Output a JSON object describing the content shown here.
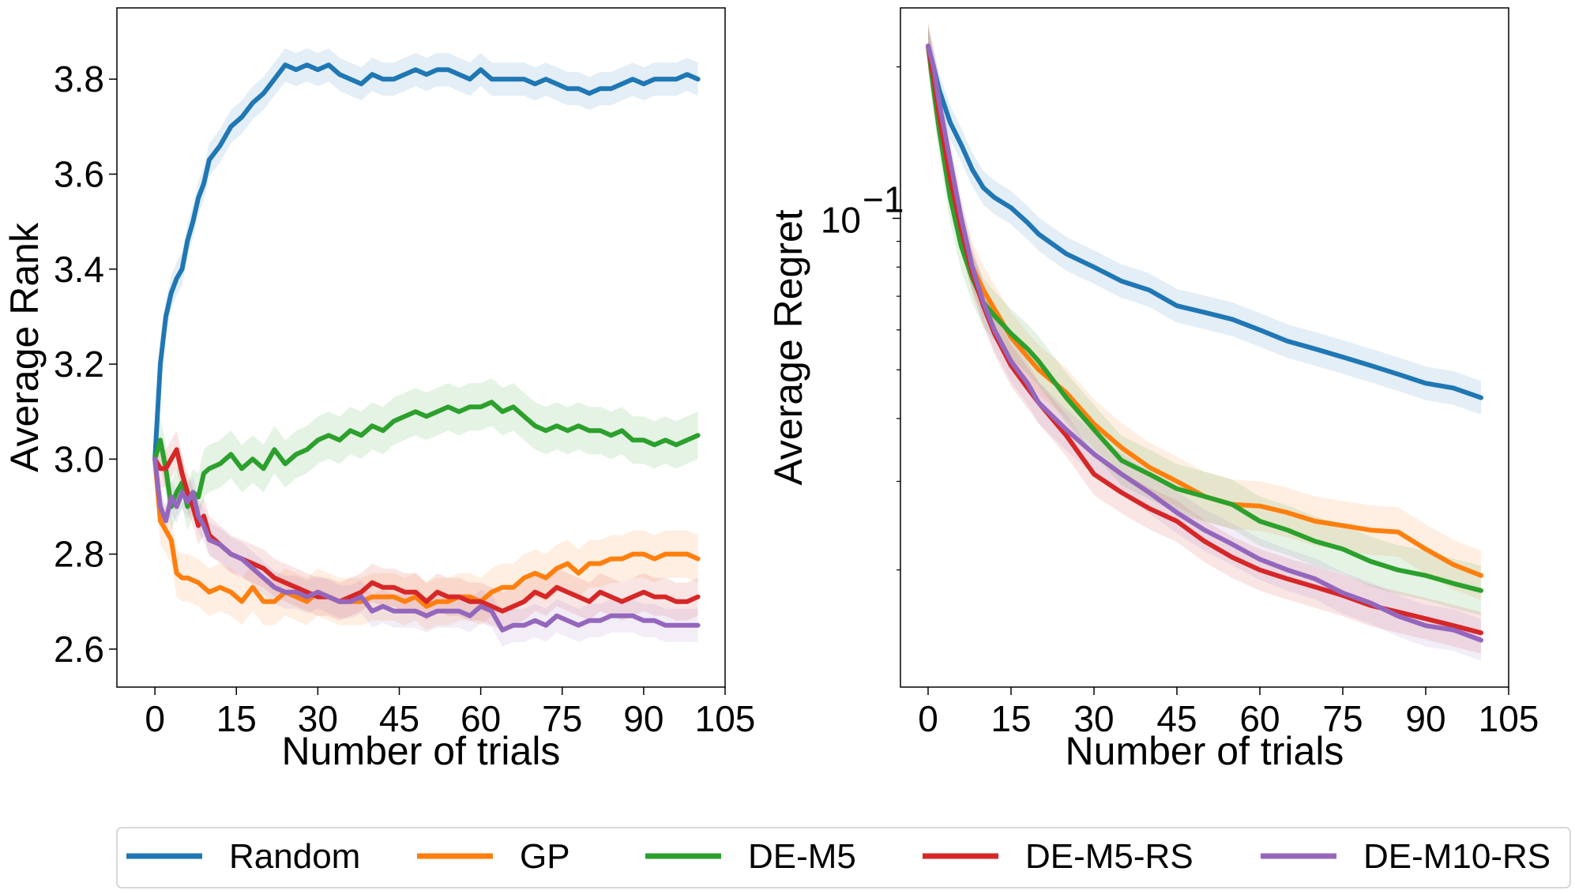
{
  "chart_data": [
    {
      "type": "line",
      "panel": "left",
      "xlabel": "Number of trials",
      "ylabel": "Average Rank",
      "xlim": [
        -7,
        105
      ],
      "ylim": [
        2.52,
        3.95
      ],
      "xticks": [
        0,
        15,
        30,
        45,
        60,
        75,
        90,
        105
      ],
      "yticks": [
        2.6,
        2.8,
        3.0,
        3.2,
        3.4,
        3.6,
        3.8
      ],
      "ytick_labels": [
        "2.6",
        "2.8",
        "3.0",
        "3.2",
        "3.4",
        "3.6",
        "3.8"
      ],
      "series": [
        {
          "name": "Random",
          "color": "#1f77b4",
          "x": [
            0,
            1,
            2,
            3,
            4,
            5,
            6,
            7,
            8,
            9,
            10,
            12,
            14,
            16,
            18,
            20,
            22,
            24,
            26,
            28,
            30,
            32,
            34,
            36,
            38,
            40,
            42,
            44,
            46,
            48,
            50,
            52,
            54,
            56,
            58,
            60,
            62,
            64,
            66,
            68,
            70,
            72,
            74,
            76,
            78,
            80,
            82,
            84,
            86,
            88,
            90,
            92,
            94,
            96,
            98,
            100
          ],
          "y": [
            3.0,
            3.2,
            3.3,
            3.35,
            3.38,
            3.4,
            3.46,
            3.5,
            3.55,
            3.58,
            3.63,
            3.66,
            3.7,
            3.72,
            3.75,
            3.77,
            3.8,
            3.83,
            3.82,
            3.83,
            3.82,
            3.83,
            3.81,
            3.8,
            3.79,
            3.81,
            3.8,
            3.8,
            3.81,
            3.82,
            3.81,
            3.82,
            3.82,
            3.81,
            3.8,
            3.82,
            3.8,
            3.8,
            3.8,
            3.8,
            3.79,
            3.8,
            3.79,
            3.78,
            3.78,
            3.77,
            3.78,
            3.78,
            3.79,
            3.8,
            3.79,
            3.8,
            3.8,
            3.8,
            3.81,
            3.8
          ],
          "band": 0.035
        },
        {
          "name": "GP",
          "color": "#ff7f0e",
          "x": [
            0,
            1,
            2,
            3,
            4,
            5,
            6,
            8,
            10,
            12,
            14,
            16,
            18,
            20,
            22,
            24,
            26,
            28,
            30,
            32,
            34,
            36,
            38,
            40,
            42,
            44,
            46,
            48,
            50,
            52,
            54,
            56,
            58,
            60,
            62,
            64,
            66,
            68,
            70,
            72,
            74,
            76,
            78,
            80,
            82,
            84,
            86,
            88,
            90,
            92,
            94,
            96,
            98,
            100
          ],
          "y": [
            3.0,
            2.87,
            2.85,
            2.83,
            2.76,
            2.75,
            2.75,
            2.74,
            2.72,
            2.73,
            2.72,
            2.7,
            2.73,
            2.7,
            2.7,
            2.72,
            2.71,
            2.7,
            2.72,
            2.71,
            2.7,
            2.7,
            2.7,
            2.71,
            2.71,
            2.71,
            2.7,
            2.71,
            2.69,
            2.7,
            2.7,
            2.71,
            2.71,
            2.7,
            2.72,
            2.73,
            2.73,
            2.75,
            2.76,
            2.75,
            2.77,
            2.78,
            2.76,
            2.78,
            2.78,
            2.79,
            2.79,
            2.8,
            2.8,
            2.79,
            2.8,
            2.8,
            2.8,
            2.79
          ],
          "band": 0.05
        },
        {
          "name": "DE-M5",
          "color": "#2ca02c",
          "x": [
            0,
            1,
            2,
            3,
            4,
            5,
            6,
            7,
            8,
            9,
            10,
            12,
            14,
            16,
            18,
            20,
            22,
            24,
            26,
            28,
            30,
            32,
            34,
            36,
            38,
            40,
            42,
            44,
            46,
            48,
            50,
            52,
            54,
            56,
            58,
            60,
            62,
            64,
            66,
            68,
            70,
            72,
            74,
            76,
            78,
            80,
            82,
            84,
            86,
            88,
            90,
            92,
            94,
            96,
            98,
            100
          ],
          "y": [
            3.0,
            3.04,
            2.98,
            2.9,
            2.93,
            2.95,
            2.9,
            2.93,
            2.92,
            2.97,
            2.98,
            2.99,
            3.01,
            2.98,
            3.0,
            2.98,
            3.02,
            2.99,
            3.01,
            3.02,
            3.04,
            3.05,
            3.04,
            3.06,
            3.05,
            3.07,
            3.06,
            3.08,
            3.09,
            3.1,
            3.09,
            3.1,
            3.11,
            3.1,
            3.11,
            3.11,
            3.12,
            3.1,
            3.11,
            3.09,
            3.07,
            3.06,
            3.07,
            3.06,
            3.07,
            3.06,
            3.06,
            3.05,
            3.06,
            3.04,
            3.04,
            3.03,
            3.04,
            3.03,
            3.04,
            3.05
          ],
          "band": 0.05
        },
        {
          "name": "DE-M5-RS",
          "color": "#d62728",
          "x": [
            0,
            1,
            2,
            3,
            4,
            5,
            6,
            7,
            8,
            9,
            10,
            12,
            14,
            16,
            18,
            20,
            22,
            24,
            26,
            28,
            30,
            32,
            34,
            36,
            38,
            40,
            42,
            44,
            46,
            48,
            50,
            52,
            54,
            56,
            58,
            60,
            62,
            64,
            66,
            68,
            70,
            72,
            74,
            76,
            78,
            80,
            82,
            84,
            86,
            88,
            90,
            92,
            94,
            96,
            98,
            100
          ],
          "y": [
            3.0,
            2.98,
            2.98,
            3.0,
            3.02,
            2.97,
            2.93,
            2.9,
            2.86,
            2.88,
            2.84,
            2.82,
            2.8,
            2.79,
            2.78,
            2.77,
            2.75,
            2.74,
            2.73,
            2.72,
            2.71,
            2.71,
            2.7,
            2.71,
            2.72,
            2.74,
            2.73,
            2.73,
            2.72,
            2.72,
            2.7,
            2.72,
            2.71,
            2.71,
            2.7,
            2.7,
            2.69,
            2.68,
            2.69,
            2.7,
            2.72,
            2.71,
            2.73,
            2.72,
            2.71,
            2.7,
            2.72,
            2.71,
            2.7,
            2.71,
            2.72,
            2.71,
            2.71,
            2.7,
            2.7,
            2.71
          ],
          "band": 0.04
        },
        {
          "name": "DE-M10-RS",
          "color": "#9467bd",
          "x": [
            0,
            1,
            2,
            3,
            4,
            5,
            6,
            7,
            8,
            9,
            10,
            12,
            14,
            16,
            18,
            20,
            22,
            24,
            26,
            28,
            30,
            32,
            34,
            36,
            38,
            40,
            42,
            44,
            46,
            48,
            50,
            52,
            54,
            56,
            58,
            60,
            62,
            64,
            66,
            68,
            70,
            72,
            74,
            76,
            78,
            80,
            82,
            84,
            86,
            88,
            90,
            92,
            94,
            96,
            98,
            100
          ],
          "y": [
            3.0,
            2.9,
            2.87,
            2.92,
            2.9,
            2.93,
            2.91,
            2.93,
            2.88,
            2.86,
            2.83,
            2.82,
            2.8,
            2.79,
            2.77,
            2.75,
            2.73,
            2.72,
            2.72,
            2.71,
            2.72,
            2.71,
            2.7,
            2.7,
            2.71,
            2.68,
            2.69,
            2.68,
            2.68,
            2.68,
            2.67,
            2.68,
            2.68,
            2.68,
            2.67,
            2.69,
            2.68,
            2.64,
            2.65,
            2.65,
            2.66,
            2.65,
            2.67,
            2.66,
            2.65,
            2.66,
            2.66,
            2.67,
            2.67,
            2.67,
            2.66,
            2.66,
            2.65,
            2.65,
            2.65,
            2.65
          ],
          "band": 0.035
        }
      ]
    },
    {
      "type": "line",
      "panel": "right",
      "yscale": "log",
      "xlabel": "Number of trials",
      "ylabel": "Average Regret",
      "xlim": [
        -5,
        105
      ],
      "ylim": [
        0.0117,
        0.262
      ],
      "xticks": [
        0,
        15,
        30,
        45,
        60,
        75,
        90,
        105
      ],
      "yticks": [
        0.1
      ],
      "ytick_label_base": "10",
      "ytick_label_exp": "−1",
      "series": [
        {
          "name": "Random",
          "color": "#1f77b4",
          "x": [
            0,
            1,
            2,
            4,
            6,
            8,
            10,
            12,
            15,
            18,
            20,
            25,
            30,
            35,
            40,
            45,
            50,
            55,
            60,
            65,
            70,
            75,
            80,
            85,
            90,
            95,
            100
          ],
          "y": [
            0.22,
            0.2,
            0.18,
            0.155,
            0.14,
            0.125,
            0.115,
            0.11,
            0.105,
            0.098,
            0.093,
            0.085,
            0.08,
            0.075,
            0.072,
            0.067,
            0.065,
            0.063,
            0.06,
            0.057,
            0.055,
            0.053,
            0.051,
            0.049,
            0.047,
            0.046,
            0.044
          ],
          "band": 0.08
        },
        {
          "name": "GP",
          "color": "#ff7f0e",
          "x": [
            0,
            1,
            2,
            4,
            6,
            8,
            10,
            12,
            15,
            18,
            20,
            25,
            30,
            35,
            40,
            45,
            50,
            55,
            60,
            65,
            70,
            75,
            80,
            85,
            90,
            95,
            100
          ],
          "y": [
            0.22,
            0.19,
            0.16,
            0.12,
            0.095,
            0.08,
            0.072,
            0.066,
            0.058,
            0.053,
            0.05,
            0.045,
            0.039,
            0.035,
            0.032,
            0.03,
            0.028,
            0.027,
            0.0268,
            0.026,
            0.025,
            0.0245,
            0.024,
            0.0238,
            0.022,
            0.0205,
            0.0195
          ],
          "band": 0.12
        },
        {
          "name": "DE-M5",
          "color": "#2ca02c",
          "x": [
            0,
            1,
            2,
            4,
            6,
            8,
            10,
            12,
            15,
            18,
            20,
            25,
            30,
            35,
            40,
            45,
            50,
            55,
            60,
            65,
            70,
            75,
            80,
            85,
            90,
            95,
            100
          ],
          "y": [
            0.22,
            0.18,
            0.15,
            0.11,
            0.088,
            0.076,
            0.068,
            0.064,
            0.059,
            0.055,
            0.052,
            0.044,
            0.038,
            0.033,
            0.031,
            0.029,
            0.028,
            0.027,
            0.025,
            0.024,
            0.0228,
            0.022,
            0.0208,
            0.02,
            0.0195,
            0.0188,
            0.0182
          ],
          "band": 0.12
        },
        {
          "name": "DE-M5-RS",
          "color": "#d62728",
          "x": [
            0,
            1,
            2,
            4,
            6,
            8,
            10,
            12,
            15,
            18,
            20,
            25,
            30,
            35,
            40,
            45,
            50,
            55,
            60,
            65,
            70,
            75,
            80,
            85,
            90,
            95,
            100
          ],
          "y": [
            0.22,
            0.19,
            0.16,
            0.12,
            0.095,
            0.078,
            0.067,
            0.059,
            0.051,
            0.046,
            0.043,
            0.037,
            0.031,
            0.0285,
            0.0265,
            0.025,
            0.0228,
            0.0212,
            0.02,
            0.0192,
            0.0185,
            0.0178,
            0.017,
            0.0165,
            0.016,
            0.0155,
            0.015
          ],
          "band": 0.1
        },
        {
          "name": "DE-M10-RS",
          "color": "#9467bd",
          "x": [
            0,
            1,
            2,
            4,
            6,
            8,
            10,
            12,
            15,
            18,
            20,
            25,
            30,
            35,
            40,
            45,
            50,
            55,
            60,
            65,
            70,
            75,
            80,
            85,
            90,
            95,
            100
          ],
          "y": [
            0.22,
            0.2,
            0.17,
            0.13,
            0.1,
            0.08,
            0.068,
            0.06,
            0.052,
            0.047,
            0.043,
            0.038,
            0.034,
            0.031,
            0.0285,
            0.026,
            0.024,
            0.0225,
            0.021,
            0.02,
            0.0192,
            0.018,
            0.0172,
            0.0162,
            0.0155,
            0.0152,
            0.0145
          ],
          "band": 0.1
        }
      ]
    }
  ],
  "legend": {
    "placement": "bottom",
    "items": [
      {
        "label": "Random",
        "color": "#1f77b4"
      },
      {
        "label": "GP",
        "color": "#ff7f0e"
      },
      {
        "label": "DE-M5",
        "color": "#2ca02c"
      },
      {
        "label": "DE-M5-RS",
        "color": "#d62728"
      },
      {
        "label": "DE-M10-RS",
        "color": "#9467bd"
      }
    ]
  }
}
